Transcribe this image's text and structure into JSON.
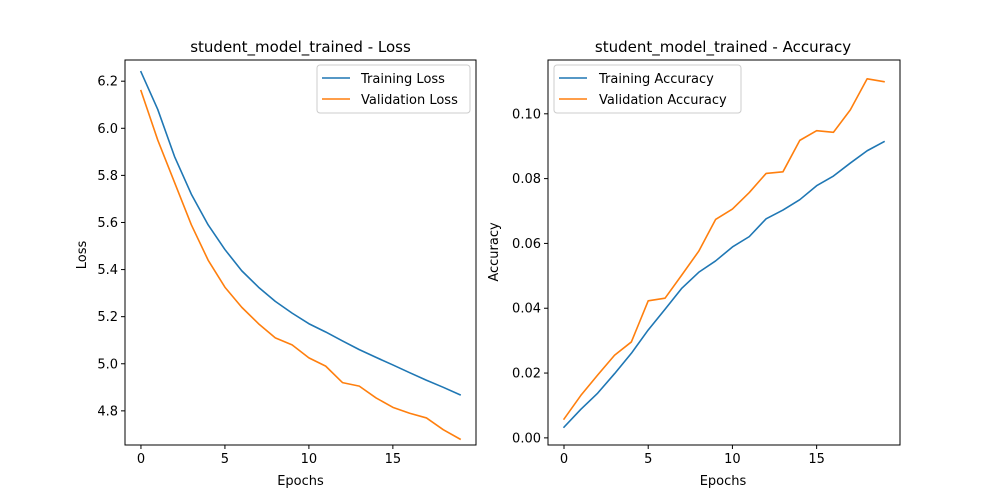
{
  "chart_data": [
    {
      "type": "line",
      "title": "student_model_trained - Loss",
      "xlabel": "Epochs",
      "ylabel": "Loss",
      "x": [
        0,
        1,
        2,
        3,
        4,
        5,
        6,
        7,
        8,
        9,
        10,
        11,
        12,
        13,
        14,
        15,
        16,
        17,
        18,
        19
      ],
      "xlim": [
        -0.95,
        19.95
      ],
      "ylim": [
        4.655,
        6.29
      ],
      "xticks": [
        0,
        5,
        10,
        15
      ],
      "xtick_labels": [
        "0",
        "5",
        "10",
        "15"
      ],
      "yticks": [
        4.8,
        5.0,
        5.2,
        5.4,
        5.6,
        5.8,
        6.0,
        6.2
      ],
      "ytick_labels": [
        "4.8",
        "5.0",
        "5.2",
        "5.4",
        "5.6",
        "5.8",
        "6.0",
        "6.2"
      ],
      "grid": false,
      "legend_position": "upper right",
      "series": [
        {
          "name": "Training Loss",
          "color": "#1f77b4",
          "values": [
            6.24,
            6.08,
            5.88,
            5.72,
            5.59,
            5.485,
            5.395,
            5.325,
            5.265,
            5.215,
            5.17,
            5.135,
            5.097,
            5.06,
            5.027,
            4.995,
            4.962,
            4.93,
            4.9,
            4.868
          ]
        },
        {
          "name": "Validation Loss",
          "color": "#ff7f0e",
          "values": [
            6.16,
            5.95,
            5.77,
            5.59,
            5.44,
            5.325,
            5.24,
            5.17,
            5.11,
            5.08,
            5.025,
            4.99,
            4.92,
            4.905,
            4.855,
            4.815,
            4.79,
            4.77,
            4.72,
            4.68
          ]
        }
      ]
    },
    {
      "type": "line",
      "title": "student_model_trained - Accuracy",
      "xlabel": "Epochs",
      "ylabel": "Accuracy",
      "x": [
        0,
        1,
        2,
        3,
        4,
        5,
        6,
        7,
        8,
        9,
        10,
        11,
        12,
        13,
        14,
        15,
        16,
        17,
        18,
        19
      ],
      "xlim": [
        -0.95,
        19.95
      ],
      "ylim": [
        -0.0022,
        0.1166
      ],
      "xticks": [
        0,
        5,
        10,
        15
      ],
      "xtick_labels": [
        "0",
        "5",
        "10",
        "15"
      ],
      "yticks": [
        0.0,
        0.02,
        0.04,
        0.06,
        0.08,
        0.1
      ],
      "ytick_labels": [
        "0.00",
        "0.02",
        "0.04",
        "0.06",
        "0.08",
        "0.10"
      ],
      "grid": false,
      "legend_position": "upper left",
      "series": [
        {
          "name": "Training Accuracy",
          "color": "#1f77b4",
          "values": [
            0.0033,
            0.0088,
            0.0138,
            0.0198,
            0.0261,
            0.0333,
            0.0397,
            0.0462,
            0.0511,
            0.0546,
            0.0589,
            0.0621,
            0.0676,
            0.0703,
            0.0735,
            0.0778,
            0.0808,
            0.0848,
            0.0886,
            0.0914
          ]
        },
        {
          "name": "Validation Accuracy",
          "color": "#ff7f0e",
          "values": [
            0.0058,
            0.0131,
            0.0194,
            0.0255,
            0.0296,
            0.0423,
            0.0431,
            0.0503,
            0.0576,
            0.0674,
            0.0706,
            0.0757,
            0.0816,
            0.0821,
            0.0918,
            0.0948,
            0.0943,
            0.1012,
            0.1108,
            0.1099
          ]
        }
      ]
    }
  ]
}
